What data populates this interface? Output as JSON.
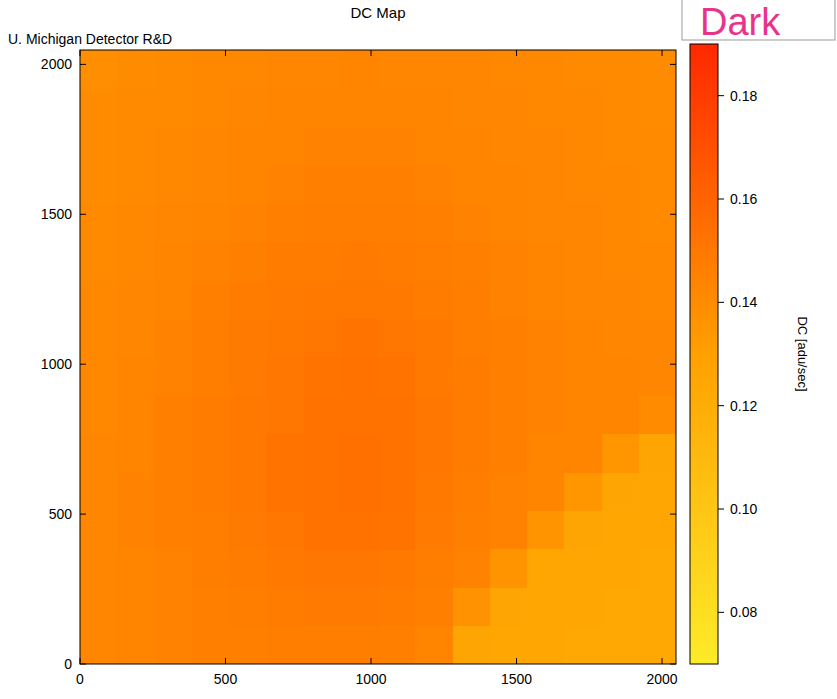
{
  "chart_data": {
    "type": "heatmap",
    "title": "DC Map",
    "subtitle": "U. Michigan Detector R&D",
    "annotation": "Dark",
    "xlim": [
      0,
      2048
    ],
    "ylim": [
      0,
      2048
    ],
    "xticks": [
      0,
      500,
      1000,
      1500,
      2000
    ],
    "yticks": [
      0,
      500,
      1000,
      1500,
      2000
    ],
    "cells": [
      [
        0.143,
        0.144,
        0.145,
        0.146,
        0.146,
        0.147,
        0.147,
        0.147,
        0.146,
        0.144,
        0.126,
        0.125,
        0.125,
        0.124,
        0.124,
        0.124
      ],
      [
        0.143,
        0.144,
        0.145,
        0.146,
        0.147,
        0.148,
        0.149,
        0.149,
        0.148,
        0.146,
        0.137,
        0.126,
        0.125,
        0.125,
        0.124,
        0.124
      ],
      [
        0.143,
        0.144,
        0.145,
        0.147,
        0.148,
        0.15,
        0.151,
        0.151,
        0.15,
        0.147,
        0.145,
        0.136,
        0.125,
        0.125,
        0.125,
        0.124
      ],
      [
        0.143,
        0.145,
        0.146,
        0.147,
        0.149,
        0.151,
        0.153,
        0.153,
        0.152,
        0.149,
        0.146,
        0.145,
        0.136,
        0.126,
        0.125,
        0.125
      ],
      [
        0.143,
        0.145,
        0.146,
        0.148,
        0.15,
        0.152,
        0.153,
        0.154,
        0.153,
        0.15,
        0.147,
        0.145,
        0.144,
        0.135,
        0.126,
        0.125
      ],
      [
        0.143,
        0.144,
        0.146,
        0.148,
        0.15,
        0.152,
        0.153,
        0.154,
        0.153,
        0.151,
        0.148,
        0.146,
        0.144,
        0.144,
        0.135,
        0.126
      ],
      [
        0.142,
        0.144,
        0.146,
        0.148,
        0.15,
        0.151,
        0.153,
        0.153,
        0.153,
        0.151,
        0.148,
        0.146,
        0.145,
        0.144,
        0.144,
        0.14
      ],
      [
        0.142,
        0.144,
        0.145,
        0.147,
        0.149,
        0.151,
        0.152,
        0.153,
        0.152,
        0.15,
        0.148,
        0.146,
        0.145,
        0.144,
        0.144,
        0.143
      ],
      [
        0.142,
        0.143,
        0.145,
        0.147,
        0.149,
        0.15,
        0.151,
        0.152,
        0.151,
        0.15,
        0.147,
        0.146,
        0.145,
        0.144,
        0.143,
        0.143
      ],
      [
        0.142,
        0.143,
        0.144,
        0.146,
        0.148,
        0.149,
        0.15,
        0.15,
        0.15,
        0.148,
        0.147,
        0.145,
        0.144,
        0.143,
        0.143,
        0.142
      ],
      [
        0.141,
        0.142,
        0.144,
        0.145,
        0.146,
        0.148,
        0.148,
        0.149,
        0.148,
        0.147,
        0.146,
        0.145,
        0.144,
        0.143,
        0.142,
        0.142
      ],
      [
        0.141,
        0.142,
        0.143,
        0.144,
        0.145,
        0.146,
        0.147,
        0.147,
        0.147,
        0.146,
        0.145,
        0.144,
        0.143,
        0.143,
        0.142,
        0.141
      ],
      [
        0.14,
        0.141,
        0.142,
        0.143,
        0.144,
        0.145,
        0.146,
        0.146,
        0.146,
        0.145,
        0.144,
        0.144,
        0.143,
        0.142,
        0.142,
        0.141
      ],
      [
        0.14,
        0.141,
        0.142,
        0.143,
        0.144,
        0.144,
        0.145,
        0.145,
        0.145,
        0.144,
        0.144,
        0.143,
        0.143,
        0.142,
        0.141,
        0.141
      ],
      [
        0.14,
        0.141,
        0.141,
        0.142,
        0.143,
        0.144,
        0.144,
        0.144,
        0.144,
        0.144,
        0.143,
        0.143,
        0.142,
        0.142,
        0.141,
        0.14
      ],
      [
        0.139,
        0.14,
        0.141,
        0.142,
        0.142,
        0.143,
        0.143,
        0.144,
        0.143,
        0.143,
        0.143,
        0.142,
        0.142,
        0.141,
        0.141,
        0.14
      ]
    ],
    "colorbar": {
      "label": "DC [adu/sec]",
      "range": [
        0.07,
        0.19
      ],
      "ticks": [
        0.08,
        {
          "value": 0.1,
          "label": "0.10"
        },
        0.12,
        0.14,
        0.16,
        0.18
      ]
    }
  }
}
